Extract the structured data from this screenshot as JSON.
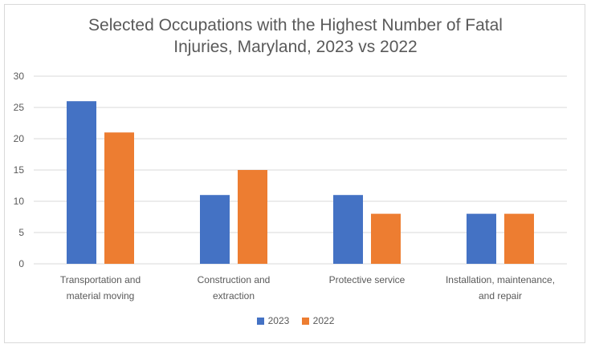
{
  "chart_data": {
    "type": "bar",
    "title": [
      "Selected Occupations with the Highest Number of Fatal",
      "Injuries, Maryland, 2023 vs 2022"
    ],
    "categories": [
      [
        "Transportation and",
        "material moving"
      ],
      [
        "Construction and",
        "extraction"
      ],
      [
        "Protective service"
      ],
      [
        "Installation, maintenance,",
        "and repair"
      ]
    ],
    "series": [
      {
        "name": "2023",
        "color": "#4472c4",
        "values": [
          26,
          11,
          11,
          8
        ]
      },
      {
        "name": "2022",
        "color": "#ed7d31",
        "values": [
          21,
          15,
          8,
          8
        ]
      }
    ],
    "ylim": [
      0,
      30
    ],
    "yticks": [
      0,
      5,
      10,
      15,
      20,
      25,
      30
    ],
    "grid": true,
    "legend_position": "bottom"
  }
}
